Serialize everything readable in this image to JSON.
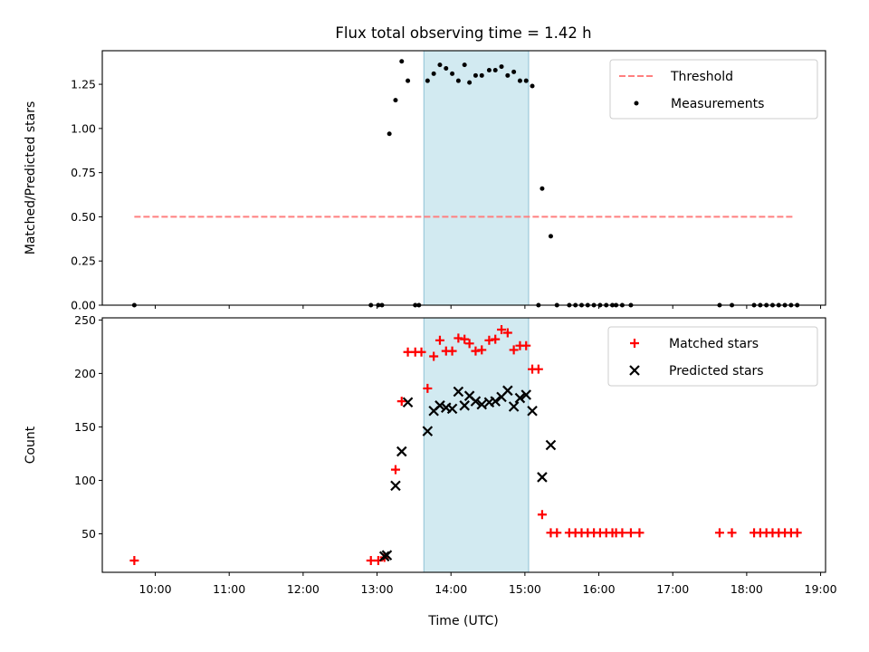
{
  "chart_data": {
    "type": "scatter",
    "title": "Flux total observing time = 1.42 h",
    "xlabel": "Time (UTC)",
    "x_ticks": [
      "10:00",
      "11:00",
      "12:00",
      "13:00",
      "14:00",
      "15:00",
      "16:00",
      "17:00",
      "18:00",
      "19:00"
    ],
    "xlim": [
      "09:17",
      "19:04"
    ],
    "highlight_span": {
      "from": "13:38",
      "to": "15:03",
      "color": "#add8e6"
    },
    "panels": [
      {
        "ylabel": "Matched/Predicted stars",
        "ylim": [
          0,
          1.44
        ],
        "y_ticks": [
          "0.00",
          "0.25",
          "0.50",
          "0.75",
          "1.00",
          "1.25"
        ],
        "legend": {
          "position": "upper right",
          "entries": [
            "Threshold",
            "Measurements"
          ]
        },
        "series": [
          {
            "name": "Threshold",
            "style": "dashed-line",
            "color": "#ff7f7f",
            "points": [
              [
                "09:43",
                0.5
              ],
              [
                "18:38",
                0.5
              ]
            ]
          },
          {
            "name": "Measurements",
            "style": "dot",
            "color": "#000000",
            "points": [
              [
                "09:43",
                0.0
              ],
              [
                "12:55",
                0.0
              ],
              [
                "13:01",
                0.0
              ],
              [
                "13:04",
                0.0
              ],
              [
                "13:10",
                0.97
              ],
              [
                "13:15",
                1.16
              ],
              [
                "13:20",
                1.38
              ],
              [
                "13:25",
                1.27
              ],
              [
                "13:31",
                0.0
              ],
              [
                "13:34",
                0.0
              ],
              [
                "13:41",
                1.27
              ],
              [
                "13:46",
                1.31
              ],
              [
                "13:51",
                1.36
              ],
              [
                "13:56",
                1.34
              ],
              [
                "14:01",
                1.31
              ],
              [
                "14:06",
                1.27
              ],
              [
                "14:11",
                1.36
              ],
              [
                "14:15",
                1.26
              ],
              [
                "14:20",
                1.3
              ],
              [
                "14:25",
                1.3
              ],
              [
                "14:31",
                1.33
              ],
              [
                "14:36",
                1.33
              ],
              [
                "14:41",
                1.35
              ],
              [
                "14:46",
                1.3
              ],
              [
                "14:51",
                1.32
              ],
              [
                "14:56",
                1.27
              ],
              [
                "15:01",
                1.27
              ],
              [
                "15:06",
                1.24
              ],
              [
                "15:11",
                0.0
              ],
              [
                "15:14",
                0.66
              ],
              [
                "15:21",
                0.39
              ],
              [
                "15:26",
                0.0
              ],
              [
                "15:36",
                0.0
              ],
              [
                "15:41",
                0.0
              ],
              [
                "15:46",
                0.0
              ],
              [
                "15:51",
                0.0
              ],
              [
                "15:56",
                0.0
              ],
              [
                "16:01",
                0.0
              ],
              [
                "16:06",
                0.0
              ],
              [
                "16:11",
                0.0
              ],
              [
                "16:14",
                0.0
              ],
              [
                "16:19",
                0.0
              ],
              [
                "16:26",
                0.0
              ],
              [
                "17:38",
                0.0
              ],
              [
                "17:48",
                0.0
              ],
              [
                "18:06",
                0.0
              ],
              [
                "18:11",
                0.0
              ],
              [
                "18:16",
                0.0
              ],
              [
                "18:21",
                0.0
              ],
              [
                "18:26",
                0.0
              ],
              [
                "18:31",
                0.0
              ],
              [
                "18:36",
                0.0
              ],
              [
                "18:41",
                0.0
              ]
            ]
          }
        ]
      },
      {
        "ylabel": "Count",
        "ylim": [
          14,
          252
        ],
        "y_ticks": [
          "50",
          "100",
          "150",
          "200",
          "250"
        ],
        "legend": {
          "position": "upper right",
          "entries": [
            "Matched stars",
            "Predicted stars"
          ]
        },
        "series": [
          {
            "name": "Matched stars",
            "style": "plus",
            "color": "#ff0000",
            "points": [
              [
                "09:43",
                25
              ],
              [
                "12:55",
                25
              ],
              [
                "13:01",
                25
              ],
              [
                "13:06",
                28
              ],
              [
                "13:15",
                110
              ],
              [
                "13:20",
                174
              ],
              [
                "13:25",
                220
              ],
              [
                "13:31",
                220
              ],
              [
                "13:36",
                220
              ],
              [
                "13:41",
                186
              ],
              [
                "13:46",
                216
              ],
              [
                "13:51",
                231
              ],
              [
                "13:56",
                221
              ],
              [
                "14:01",
                221
              ],
              [
                "14:06",
                233
              ],
              [
                "14:11",
                232
              ],
              [
                "14:15",
                228
              ],
              [
                "14:20",
                221
              ],
              [
                "14:25",
                222
              ],
              [
                "14:31",
                231
              ],
              [
                "14:36",
                232
              ],
              [
                "14:41",
                241
              ],
              [
                "14:46",
                238
              ],
              [
                "14:51",
                222
              ],
              [
                "14:56",
                226
              ],
              [
                "15:01",
                226
              ],
              [
                "15:06",
                204
              ],
              [
                "15:11",
                204
              ],
              [
                "15:14",
                68
              ],
              [
                "15:21",
                51
              ],
              [
                "15:26",
                51
              ],
              [
                "15:36",
                51
              ],
              [
                "15:41",
                51
              ],
              [
                "15:46",
                51
              ],
              [
                "15:51",
                51
              ],
              [
                "15:56",
                51
              ],
              [
                "16:01",
                51
              ],
              [
                "16:06",
                51
              ],
              [
                "16:11",
                51
              ],
              [
                "16:14",
                51
              ],
              [
                "16:19",
                51
              ],
              [
                "16:26",
                51
              ],
              [
                "16:33",
                51
              ],
              [
                "17:38",
                51
              ],
              [
                "17:48",
                51
              ],
              [
                "18:06",
                51
              ],
              [
                "18:11",
                51
              ],
              [
                "18:16",
                51
              ],
              [
                "18:21",
                51
              ],
              [
                "18:26",
                51
              ],
              [
                "18:31",
                51
              ],
              [
                "18:36",
                51
              ],
              [
                "18:41",
                51
              ]
            ]
          },
          {
            "name": "Predicted stars",
            "style": "x",
            "color": "#000000",
            "points": [
              [
                "13:06",
                29
              ],
              [
                "13:08",
                30
              ],
              [
                "13:15",
                95
              ],
              [
                "13:20",
                127
              ],
              [
                "13:25",
                173
              ],
              [
                "13:41",
                146
              ],
              [
                "13:46",
                165
              ],
              [
                "13:51",
                170
              ],
              [
                "13:56",
                168
              ],
              [
                "14:01",
                167
              ],
              [
                "14:06",
                183
              ],
              [
                "14:11",
                170
              ],
              [
                "14:15",
                179
              ],
              [
                "14:20",
                174
              ],
              [
                "14:25",
                171
              ],
              [
                "14:31",
                173
              ],
              [
                "14:36",
                174
              ],
              [
                "14:41",
                178
              ],
              [
                "14:46",
                184
              ],
              [
                "14:51",
                169
              ],
              [
                "14:56",
                177
              ],
              [
                "15:01",
                180
              ],
              [
                "15:06",
                165
              ],
              [
                "15:14",
                103
              ],
              [
                "15:21",
                133
              ]
            ]
          }
        ]
      }
    ]
  }
}
